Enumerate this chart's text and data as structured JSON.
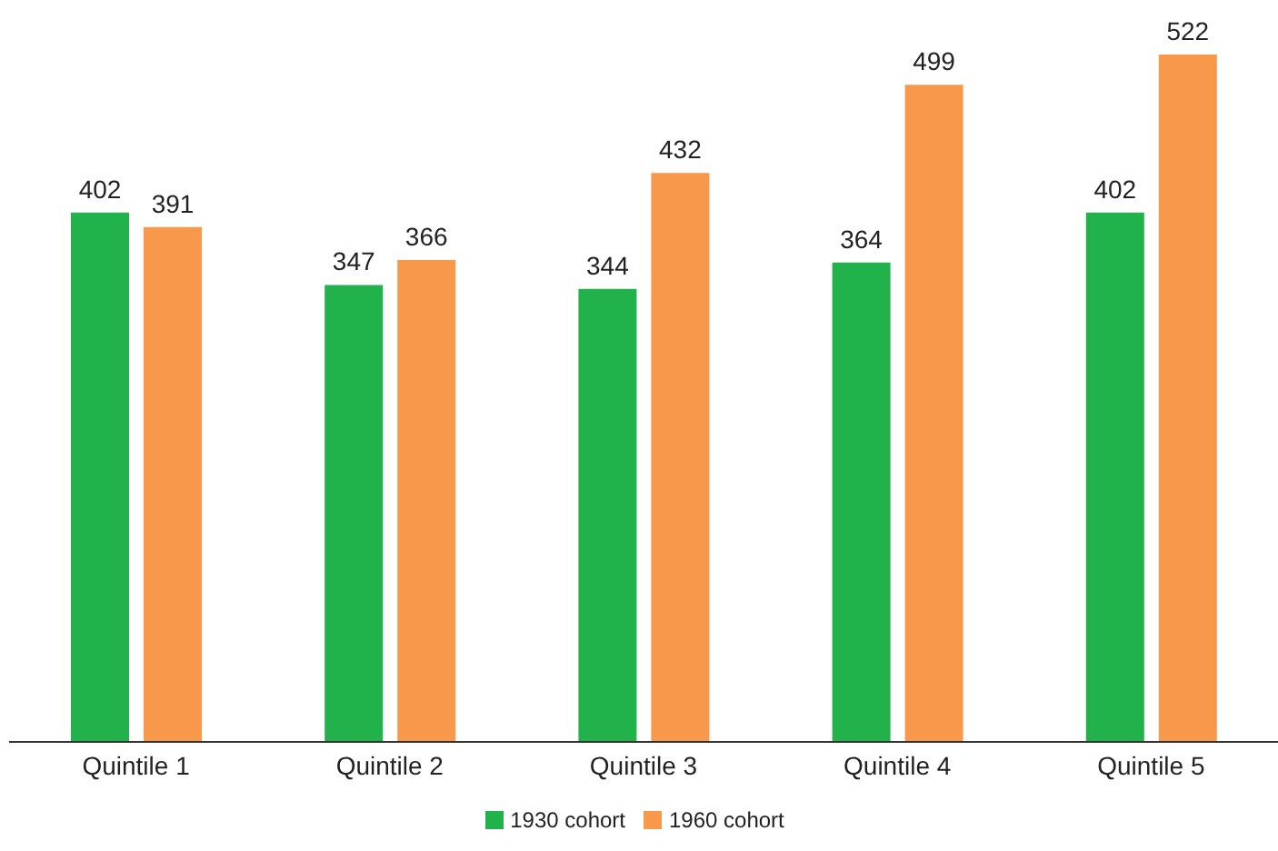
{
  "chart_data": {
    "type": "bar",
    "categories": [
      "Quintile 1",
      "Quintile 2",
      "Quintile 3",
      "Quintile 4",
      "Quintile 5"
    ],
    "series": [
      {
        "name": "1930 cohort",
        "color": "#21b24b",
        "values": [
          402,
          347,
          344,
          364,
          402
        ]
      },
      {
        "name": "1960 cohort",
        "color": "#f7984a",
        "values": [
          391,
          366,
          432,
          499,
          522
        ]
      }
    ],
    "tick_labels": "x",
    "data_labels": true,
    "legend": "bottom"
  }
}
